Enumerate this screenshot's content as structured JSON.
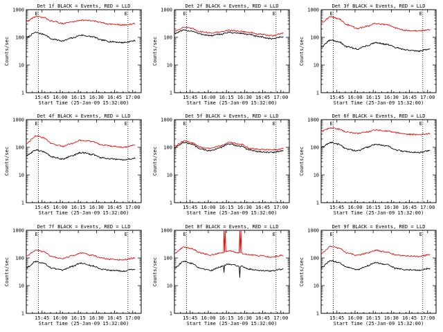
{
  "figure": {
    "xlabel": "Start Time (25-Jan-09 15:32:00)",
    "ylabel": "Counts/sec",
    "legend": "BLACK = Events, RED = LLD",
    "x_ticks": [
      "15:45",
      "16:00",
      "16:15",
      "16:30",
      "16:45",
      "17:00"
    ],
    "y_ticks": [
      "1",
      "10",
      "100",
      "1000"
    ],
    "marker_label": "E",
    "colors": {
      "events": "#000000",
      "lld": "#e0140f"
    }
  },
  "chart_data": [
    {
      "type": "line",
      "title": "Det 1f BLACK = Events, RED = LLD",
      "detector": "1f",
      "yscale": "log",
      "ylim": [
        1,
        1000
      ],
      "xlim_minutes": [
        0,
        95
      ],
      "markers_minutes": [
        10,
        84
      ],
      "series": [
        {
          "name": "Events",
          "color": "#000000",
          "minutes": [
            0,
            8,
            14,
            22,
            30,
            38,
            45,
            55,
            62,
            70,
            80,
            90
          ],
          "values": [
            100,
            150,
            130,
            85,
            75,
            95,
            120,
            105,
            80,
            70,
            65,
            75
          ]
        },
        {
          "name": "LLD",
          "color": "#e0140f",
          "minutes": [
            0,
            8,
            14,
            22,
            30,
            38,
            45,
            55,
            62,
            70,
            80,
            90
          ],
          "values": [
            380,
            560,
            520,
            380,
            320,
            360,
            420,
            400,
            340,
            300,
            280,
            310
          ]
        }
      ]
    },
    {
      "type": "line",
      "title": "Det 2f BLACK = Events, RED = LLD",
      "detector": "2f",
      "yscale": "log",
      "ylim": [
        1,
        1000
      ],
      "xlim_minutes": [
        0,
        95
      ],
      "markers_minutes": [
        10,
        84
      ],
      "series": [
        {
          "name": "Events",
          "color": "#000000",
          "minutes": [
            0,
            8,
            14,
            22,
            30,
            38,
            45,
            55,
            62,
            70,
            80,
            90
          ],
          "values": [
            140,
            180,
            170,
            130,
            115,
            130,
            150,
            140,
            125,
            105,
            90,
            105
          ]
        },
        {
          "name": "LLD",
          "color": "#e0140f",
          "minutes": [
            0,
            8,
            14,
            22,
            30,
            38,
            45,
            55,
            62,
            70,
            80,
            90
          ],
          "values": [
            170,
            230,
            210,
            160,
            145,
            155,
            180,
            165,
            150,
            130,
            115,
            140
          ]
        }
      ]
    },
    {
      "type": "line",
      "title": "Det 3f BLACK = Events, RED = LLD",
      "detector": "3f",
      "yscale": "log",
      "ylim": [
        1,
        1000
      ],
      "xlim_minutes": [
        0,
        95
      ],
      "markers_minutes": [
        10,
        84
      ],
      "series": [
        {
          "name": "Events",
          "color": "#000000",
          "minutes": [
            0,
            8,
            14,
            22,
            30,
            38,
            45,
            55,
            62,
            70,
            80,
            90
          ],
          "values": [
            45,
            80,
            70,
            45,
            38,
            50,
            65,
            55,
            42,
            35,
            32,
            38
          ]
        },
        {
          "name": "LLD",
          "color": "#e0140f",
          "minutes": [
            0,
            8,
            14,
            22,
            30,
            38,
            45,
            55,
            62,
            70,
            80,
            90
          ],
          "values": [
            350,
            550,
            480,
            280,
            210,
            250,
            320,
            280,
            220,
            180,
            170,
            190
          ]
        }
      ]
    },
    {
      "type": "line",
      "title": "Det 4f BLACK = Events, RED = LLD",
      "detector": "4f",
      "yscale": "log",
      "ylim": [
        1,
        1000
      ],
      "xlim_minutes": [
        0,
        95
      ],
      "markers_minutes": [
        10,
        84
      ],
      "series": [
        {
          "name": "Events",
          "color": "#000000",
          "minutes": [
            0,
            8,
            14,
            22,
            30,
            38,
            45,
            55,
            62,
            70,
            80,
            90
          ],
          "values": [
            50,
            80,
            70,
            45,
            38,
            50,
            65,
            55,
            42,
            38,
            35,
            40
          ]
        },
        {
          "name": "LLD",
          "color": "#e0140f",
          "minutes": [
            0,
            8,
            14,
            22,
            30,
            38,
            45,
            55,
            62,
            70,
            80,
            90
          ],
          "values": [
            140,
            260,
            220,
            130,
            110,
            140,
            180,
            160,
            125,
            110,
            100,
            120
          ]
        }
      ]
    },
    {
      "type": "line",
      "title": "Det 5f BLACK = Events, RED = LLD",
      "detector": "5f",
      "yscale": "log",
      "ylim": [
        1,
        1000
      ],
      "xlim_minutes": [
        0,
        95
      ],
      "markers_minutes": [
        10,
        84
      ],
      "series": [
        {
          "name": "Events",
          "color": "#000000",
          "minutes": [
            0,
            8,
            14,
            22,
            30,
            38,
            45,
            55,
            62,
            70,
            80,
            90
          ],
          "values": [
            100,
            150,
            130,
            85,
            75,
            100,
            130,
            110,
            80,
            70,
            65,
            75
          ]
        },
        {
          "name": "LLD",
          "color": "#e0140f",
          "minutes": [
            0,
            8,
            14,
            22,
            30,
            38,
            45,
            55,
            62,
            70,
            80,
            90
          ],
          "values": [
            110,
            170,
            150,
            100,
            90,
            115,
            150,
            130,
            95,
            85,
            80,
            90
          ]
        }
      ]
    },
    {
      "type": "line",
      "title": "Det 6f BLACK = Events, RED = LLD",
      "detector": "6f",
      "yscale": "log",
      "ylim": [
        1,
        1000
      ],
      "xlim_minutes": [
        0,
        95
      ],
      "markers_minutes": [
        10,
        84
      ],
      "series": [
        {
          "name": "Events",
          "color": "#000000",
          "minutes": [
            0,
            8,
            14,
            22,
            30,
            38,
            45,
            55,
            62,
            70,
            80,
            90
          ],
          "values": [
            100,
            150,
            130,
            85,
            75,
            100,
            130,
            110,
            80,
            70,
            65,
            75
          ]
        },
        {
          "name": "LLD",
          "color": "#e0140f",
          "minutes": [
            0,
            8,
            14,
            22,
            30,
            38,
            45,
            55,
            62,
            70,
            80,
            90
          ],
          "values": [
            380,
            500,
            460,
            350,
            320,
            360,
            420,
            390,
            340,
            300,
            290,
            310
          ]
        }
      ]
    },
    {
      "type": "line",
      "title": "Det 7f BLACK = Events, RED = LLD",
      "detector": "7f",
      "yscale": "log",
      "ylim": [
        1,
        1000
      ],
      "xlim_minutes": [
        0,
        95
      ],
      "markers_minutes": [
        10,
        84
      ],
      "series": [
        {
          "name": "Events",
          "color": "#000000",
          "minutes": [
            0,
            8,
            14,
            22,
            30,
            38,
            45,
            55,
            62,
            70,
            80,
            90
          ],
          "values": [
            45,
            75,
            65,
            42,
            36,
            50,
            65,
            52,
            40,
            36,
            34,
            40
          ]
        },
        {
          "name": "LLD",
          "color": "#e0140f",
          "minutes": [
            0,
            8,
            14,
            22,
            30,
            38,
            45,
            55,
            62,
            70,
            80,
            90
          ],
          "values": [
            120,
            190,
            170,
            110,
            95,
            120,
            150,
            125,
            100,
            90,
            85,
            100
          ]
        }
      ]
    },
    {
      "type": "line",
      "title": "Det 8f BLACK = Events, RED = LLD",
      "detector": "8f",
      "yscale": "log",
      "ylim": [
        1,
        1000
      ],
      "xlim_minutes": [
        0,
        95
      ],
      "markers_minutes": [
        10,
        84
      ],
      "series": [
        {
          "name": "Events",
          "color": "#000000",
          "minutes": [
            0,
            8,
            14,
            22,
            30,
            38,
            45,
            55,
            62,
            70,
            80,
            90
          ],
          "values": [
            45,
            75,
            65,
            42,
            36,
            48,
            60,
            50,
            40,
            36,
            34,
            40
          ]
        },
        {
          "name": "LLD",
          "color": "#e0140f",
          "minutes": [
            0,
            8,
            14,
            22,
            30,
            38,
            45,
            55,
            62,
            70,
            80,
            90
          ],
          "values": [
            150,
            250,
            220,
            150,
            130,
            150,
            180,
            150,
            130,
            120,
            110,
            125
          ]
        }
      ],
      "spikes": [
        {
          "series": "LLD",
          "minutes": [
            41,
            42
          ],
          "to": 1000
        },
        {
          "series": "LLD",
          "minutes": [
            54,
            55
          ],
          "to": 1000
        },
        {
          "series": "Events",
          "minutes": [
            41
          ],
          "to": 30
        },
        {
          "series": "Events",
          "minutes": [
            54
          ],
          "to": 20
        }
      ]
    },
    {
      "type": "line",
      "title": "Det 9f BLACK = Events, RED = LLD",
      "detector": "9f",
      "yscale": "log",
      "ylim": [
        1,
        1000
      ],
      "xlim_minutes": [
        0,
        95
      ],
      "markers_minutes": [
        10,
        84
      ],
      "series": [
        {
          "name": "Events",
          "color": "#000000",
          "minutes": [
            0,
            8,
            14,
            22,
            30,
            38,
            45,
            55,
            62,
            70,
            80,
            90
          ],
          "values": [
            45,
            80,
            70,
            45,
            38,
            52,
            68,
            56,
            42,
            38,
            36,
            42
          ]
        },
        {
          "name": "LLD",
          "color": "#e0140f",
          "minutes": [
            0,
            8,
            14,
            22,
            30,
            38,
            45,
            55,
            62,
            70,
            80,
            90
          ],
          "values": [
            150,
            260,
            230,
            150,
            125,
            150,
            190,
            160,
            130,
            120,
            115,
            130
          ]
        }
      ]
    }
  ]
}
